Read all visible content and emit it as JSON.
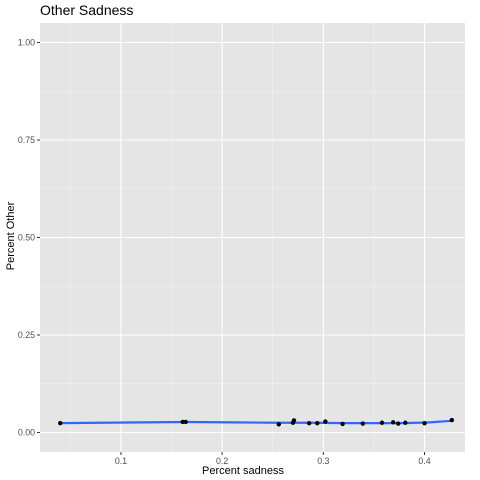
{
  "chart_data": {
    "type": "scatter",
    "title": "Other Sadness",
    "xlabel": "Percent sadness",
    "ylabel": "Percent Other",
    "xlim": [
      0.02,
      0.44
    ],
    "ylim": [
      -0.05,
      1.05
    ],
    "x_ticks": [
      0.1,
      0.2,
      0.3,
      0.4
    ],
    "x_tick_labels": [
      "0.1",
      "0.2",
      "0.3",
      "0.4"
    ],
    "y_ticks": [
      0.0,
      0.25,
      0.5,
      0.75,
      1.0
    ],
    "y_tick_labels": [
      "0.00",
      "0.25",
      "0.50",
      "0.75",
      "1.00"
    ],
    "grid": true,
    "legend": "none",
    "colors": {
      "panel": "#e5e5e5",
      "grid_major": "#ffffff",
      "grid_minor": "#f2f2f2",
      "points": "#000000",
      "smooth": "#3366ff",
      "tick": "#333333"
    },
    "points": [
      {
        "x": 0.04,
        "y": 0.024
      },
      {
        "x": 0.161,
        "y": 0.027
      },
      {
        "x": 0.164,
        "y": 0.027
      },
      {
        "x": 0.256,
        "y": 0.021
      },
      {
        "x": 0.27,
        "y": 0.025
      },
      {
        "x": 0.271,
        "y": 0.031
      },
      {
        "x": 0.286,
        "y": 0.024
      },
      {
        "x": 0.294,
        "y": 0.024
      },
      {
        "x": 0.302,
        "y": 0.028
      },
      {
        "x": 0.319,
        "y": 0.022
      },
      {
        "x": 0.339,
        "y": 0.023
      },
      {
        "x": 0.358,
        "y": 0.025
      },
      {
        "x": 0.369,
        "y": 0.026
      },
      {
        "x": 0.374,
        "y": 0.023
      },
      {
        "x": 0.381,
        "y": 0.025
      },
      {
        "x": 0.4,
        "y": 0.024
      },
      {
        "x": 0.427,
        "y": 0.032
      }
    ],
    "smooth_line": [
      {
        "x": 0.04,
        "y": 0.024
      },
      {
        "x": 0.08,
        "y": 0.025
      },
      {
        "x": 0.12,
        "y": 0.026
      },
      {
        "x": 0.165,
        "y": 0.027
      },
      {
        "x": 0.21,
        "y": 0.026
      },
      {
        "x": 0.255,
        "y": 0.025
      },
      {
        "x": 0.29,
        "y": 0.025
      },
      {
        "x": 0.32,
        "y": 0.024
      },
      {
        "x": 0.35,
        "y": 0.024
      },
      {
        "x": 0.38,
        "y": 0.024
      },
      {
        "x": 0.405,
        "y": 0.026
      },
      {
        "x": 0.427,
        "y": 0.03
      }
    ]
  }
}
